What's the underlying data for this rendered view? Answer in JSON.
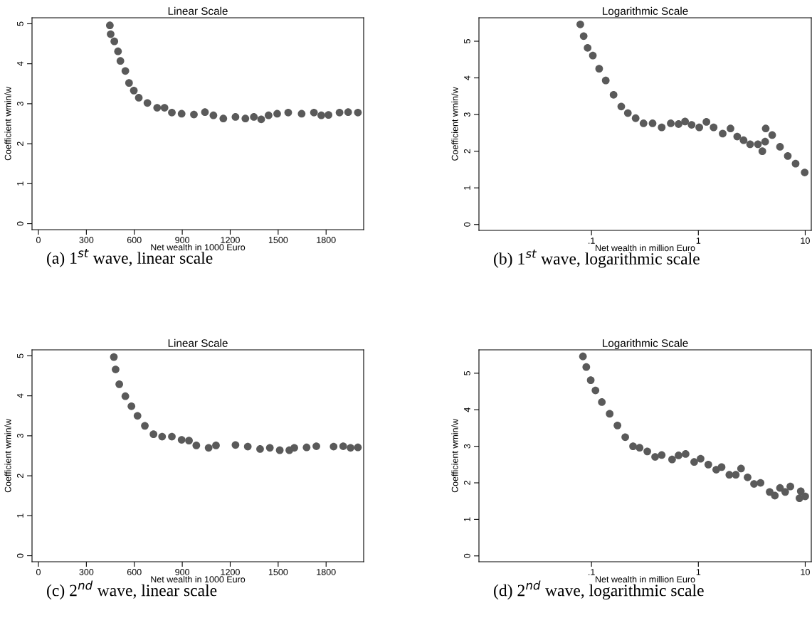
{
  "chart_data": [
    {
      "type": "scatter",
      "title": "Linear Scale",
      "xlabel": "Net wealth in 1000 Euro",
      "ylabel": "Coefficient wmin/w",
      "annotations": [
        "(a) 1$^{st}$ wave, linear scale"
      ],
      "marker": "circle",
      "grid": false,
      "xlim": [
        -40,
        2035
      ],
      "ylim": [
        -0.15,
        5.15
      ],
      "xticks": [
        0,
        300,
        600,
        900,
        1200,
        1500,
        1800
      ],
      "yticks": [
        0,
        1,
        2,
        3,
        4,
        5
      ],
      "x": [
        447,
        452,
        475,
        498,
        513,
        544,
        567,
        597,
        628,
        682,
        743,
        789,
        835,
        896,
        973,
        1042,
        1095,
        1157,
        1233,
        1295,
        1348,
        1394,
        1440,
        1494,
        1563,
        1647,
        1724,
        1770,
        1815,
        1884,
        1938,
        1999
      ],
      "series": [
        {
          "color": "#5a5a5a",
          "values": [
            4.96,
            4.74,
            4.56,
            4.31,
            4.07,
            3.82,
            3.52,
            3.33,
            3.15,
            3.02,
            2.9,
            2.9,
            2.78,
            2.75,
            2.73,
            2.79,
            2.71,
            2.63,
            2.67,
            2.63,
            2.67,
            2.61,
            2.71,
            2.75,
            2.78,
            2.75,
            2.78,
            2.71,
            2.72,
            2.78,
            2.79,
            2.78
          ]
        }
      ]
    },
    {
      "type": "scatter",
      "title": "Logarithmic Scale",
      "xlabel": "Net wealth in million Euro",
      "ylabel": "Coefficient wmin/w",
      "annotations": [
        "(b) 1$^{st}$ wave, logarithmic scale"
      ],
      "marker": "circle",
      "grid": false,
      "log": "x",
      "xlim": [
        0.00885,
        11.4
      ],
      "ylim": [
        -0.16,
        5.64
      ],
      "xticks": [
        {
          "value": 0.1,
          "label": ".1"
        },
        1,
        10
      ],
      "yticks": [
        0,
        1,
        2,
        3,
        4,
        5
      ],
      "x": [
        0.0786,
        0.0845,
        0.092,
        0.103,
        0.118,
        0.136,
        0.161,
        0.19,
        0.219,
        0.259,
        0.307,
        0.373,
        0.454,
        0.552,
        0.653,
        0.751,
        0.865,
        1.02,
        1.19,
        1.39,
        1.69,
        2.0,
        2.31,
        2.65,
        3.05,
        3.61,
        3.97,
        4.22,
        4.27,
        4.91,
        5.81,
        6.87,
        8.13,
        9.89
      ],
      "series": [
        {
          "color": "#5a5a5a",
          "values": [
            5.46,
            5.14,
            4.82,
            4.61,
            4.25,
            3.93,
            3.54,
            3.22,
            3.04,
            2.9,
            2.76,
            2.76,
            2.65,
            2.76,
            2.74,
            2.81,
            2.72,
            2.65,
            2.8,
            2.65,
            2.48,
            2.62,
            2.4,
            2.3,
            2.19,
            2.19,
            2.0,
            2.26,
            2.62,
            2.44,
            2.12,
            1.87,
            1.66,
            1.42
          ]
        }
      ]
    },
    {
      "type": "scatter",
      "title": "Linear Scale",
      "xlabel": "Net wealth in 1000 Euro",
      "ylabel": "Coefficient wmin/w",
      "annotations": [
        "(c) 2$^{nd}$ wave, linear scale"
      ],
      "marker": "circle",
      "grid": false,
      "xlim": [
        -40,
        2035
      ],
      "ylim": [
        -0.15,
        5.15
      ],
      "xticks": [
        0,
        300,
        600,
        900,
        1200,
        1500,
        1800
      ],
      "yticks": [
        0,
        1,
        2,
        3,
        4,
        5
      ],
      "x": [
        472,
        483,
        506,
        544,
        582,
        620,
        666,
        720,
        774,
        835,
        896,
        942,
        988,
        1065,
        1111,
        1233,
        1310,
        1387,
        1448,
        1510,
        1570,
        1601,
        1678,
        1739,
        1847,
        1907,
        1953,
        1999
      ],
      "series": [
        {
          "color": "#5a5a5a",
          "values": [
            4.97,
            4.66,
            4.29,
            3.99,
            3.74,
            3.5,
            3.25,
            3.04,
            2.98,
            2.98,
            2.9,
            2.88,
            2.76,
            2.7,
            2.76,
            2.77,
            2.73,
            2.67,
            2.7,
            2.64,
            2.64,
            2.7,
            2.71,
            2.74,
            2.73,
            2.74,
            2.7,
            2.71
          ]
        }
      ]
    },
    {
      "type": "scatter",
      "title": "Logarithmic Scale",
      "xlabel": "Net wealth in million Euro",
      "ylabel": "Coefficient wmin/w",
      "annotations": [
        "(d) 2$^{nd}$ wave, logarithmic scale"
      ],
      "marker": "circle",
      "grid": false,
      "log": "x",
      "xlim": [
        0.00885,
        11.4
      ],
      "ylim": [
        -0.16,
        5.64
      ],
      "xticks": [
        {
          "value": 0.1,
          "label": ".1"
        },
        1,
        10
      ],
      "yticks": [
        0,
        1,
        2,
        3,
        4,
        5
      ],
      "x": [
        0.0832,
        0.0894,
        0.0984,
        0.109,
        0.125,
        0.148,
        0.175,
        0.207,
        0.245,
        0.282,
        0.333,
        0.394,
        0.454,
        0.568,
        0.653,
        0.76,
        0.914,
        1.05,
        1.24,
        1.47,
        1.65,
        1.95,
        2.24,
        2.51,
        2.89,
        3.32,
        3.82,
        4.65,
        5.2,
        5.81,
        6.5,
        7.26,
        8.84,
        9.09,
        10.0
      ],
      "series": [
        {
          "color": "#5a5a5a",
          "values": [
            5.46,
            5.17,
            4.81,
            4.53,
            4.21,
            3.89,
            3.57,
            3.25,
            3.0,
            2.96,
            2.86,
            2.71,
            2.76,
            2.64,
            2.75,
            2.79,
            2.57,
            2.66,
            2.5,
            2.36,
            2.43,
            2.22,
            2.22,
            2.39,
            2.15,
            1.97,
            2.0,
            1.75,
            1.65,
            1.86,
            1.75,
            1.9,
            1.58,
            1.77,
            1.63
          ]
        }
      ]
    }
  ]
}
